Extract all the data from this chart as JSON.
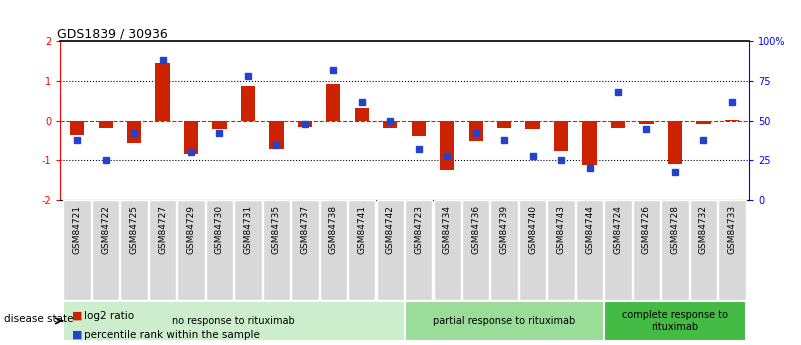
{
  "title": "GDS1839 / 30936",
  "samples": [
    "GSM84721",
    "GSM84722",
    "GSM84725",
    "GSM84727",
    "GSM84729",
    "GSM84730",
    "GSM84731",
    "GSM84735",
    "GSM84737",
    "GSM84738",
    "GSM84741",
    "GSM84742",
    "GSM84723",
    "GSM84734",
    "GSM84736",
    "GSM84739",
    "GSM84740",
    "GSM84743",
    "GSM84744",
    "GSM84724",
    "GSM84726",
    "GSM84728",
    "GSM84732",
    "GSM84733"
  ],
  "log2_ratio": [
    -0.35,
    -0.18,
    -0.55,
    1.45,
    -0.85,
    -0.22,
    0.88,
    -0.72,
    -0.15,
    0.92,
    0.32,
    -0.18,
    -0.38,
    -1.25,
    -0.52,
    -0.18,
    -0.22,
    -0.75,
    -1.12,
    -0.18,
    -0.08,
    -1.08,
    -0.08,
    0.02
  ],
  "percentile_rank": [
    38,
    25,
    42,
    88,
    30,
    42,
    78,
    35,
    48,
    82,
    62,
    50,
    32,
    28,
    42,
    38,
    28,
    25,
    20,
    68,
    45,
    18,
    38,
    62
  ],
  "groups": [
    {
      "label": "no response to rituximab",
      "start": 0,
      "end": 12,
      "color": "#cceecc"
    },
    {
      "label": "partial response to rituximab",
      "start": 12,
      "end": 19,
      "color": "#99dd99"
    },
    {
      "label": "complete response to\nrituximab",
      "start": 19,
      "end": 24,
      "color": "#44bb44"
    }
  ],
  "bar_color_red": "#cc2200",
  "bar_color_blue": "#2244cc",
  "ylim_left": [
    -2,
    2
  ],
  "ylim_right": [
    0,
    100
  ],
  "yticks_left": [
    -2,
    -1,
    0,
    1,
    2
  ],
  "yticks_right": [
    0,
    25,
    50,
    75,
    100
  ],
  "ytick_labels_right": [
    "0",
    "25",
    "50",
    "75",
    "100%"
  ],
  "title_fontsize": 9,
  "axis_label_fontsize": 6.5,
  "tick_fontsize": 7,
  "legend_red_label": "log2 ratio",
  "legend_blue_label": "percentile rank within the sample",
  "disease_state_label": "disease state",
  "background_color": "#ffffff"
}
